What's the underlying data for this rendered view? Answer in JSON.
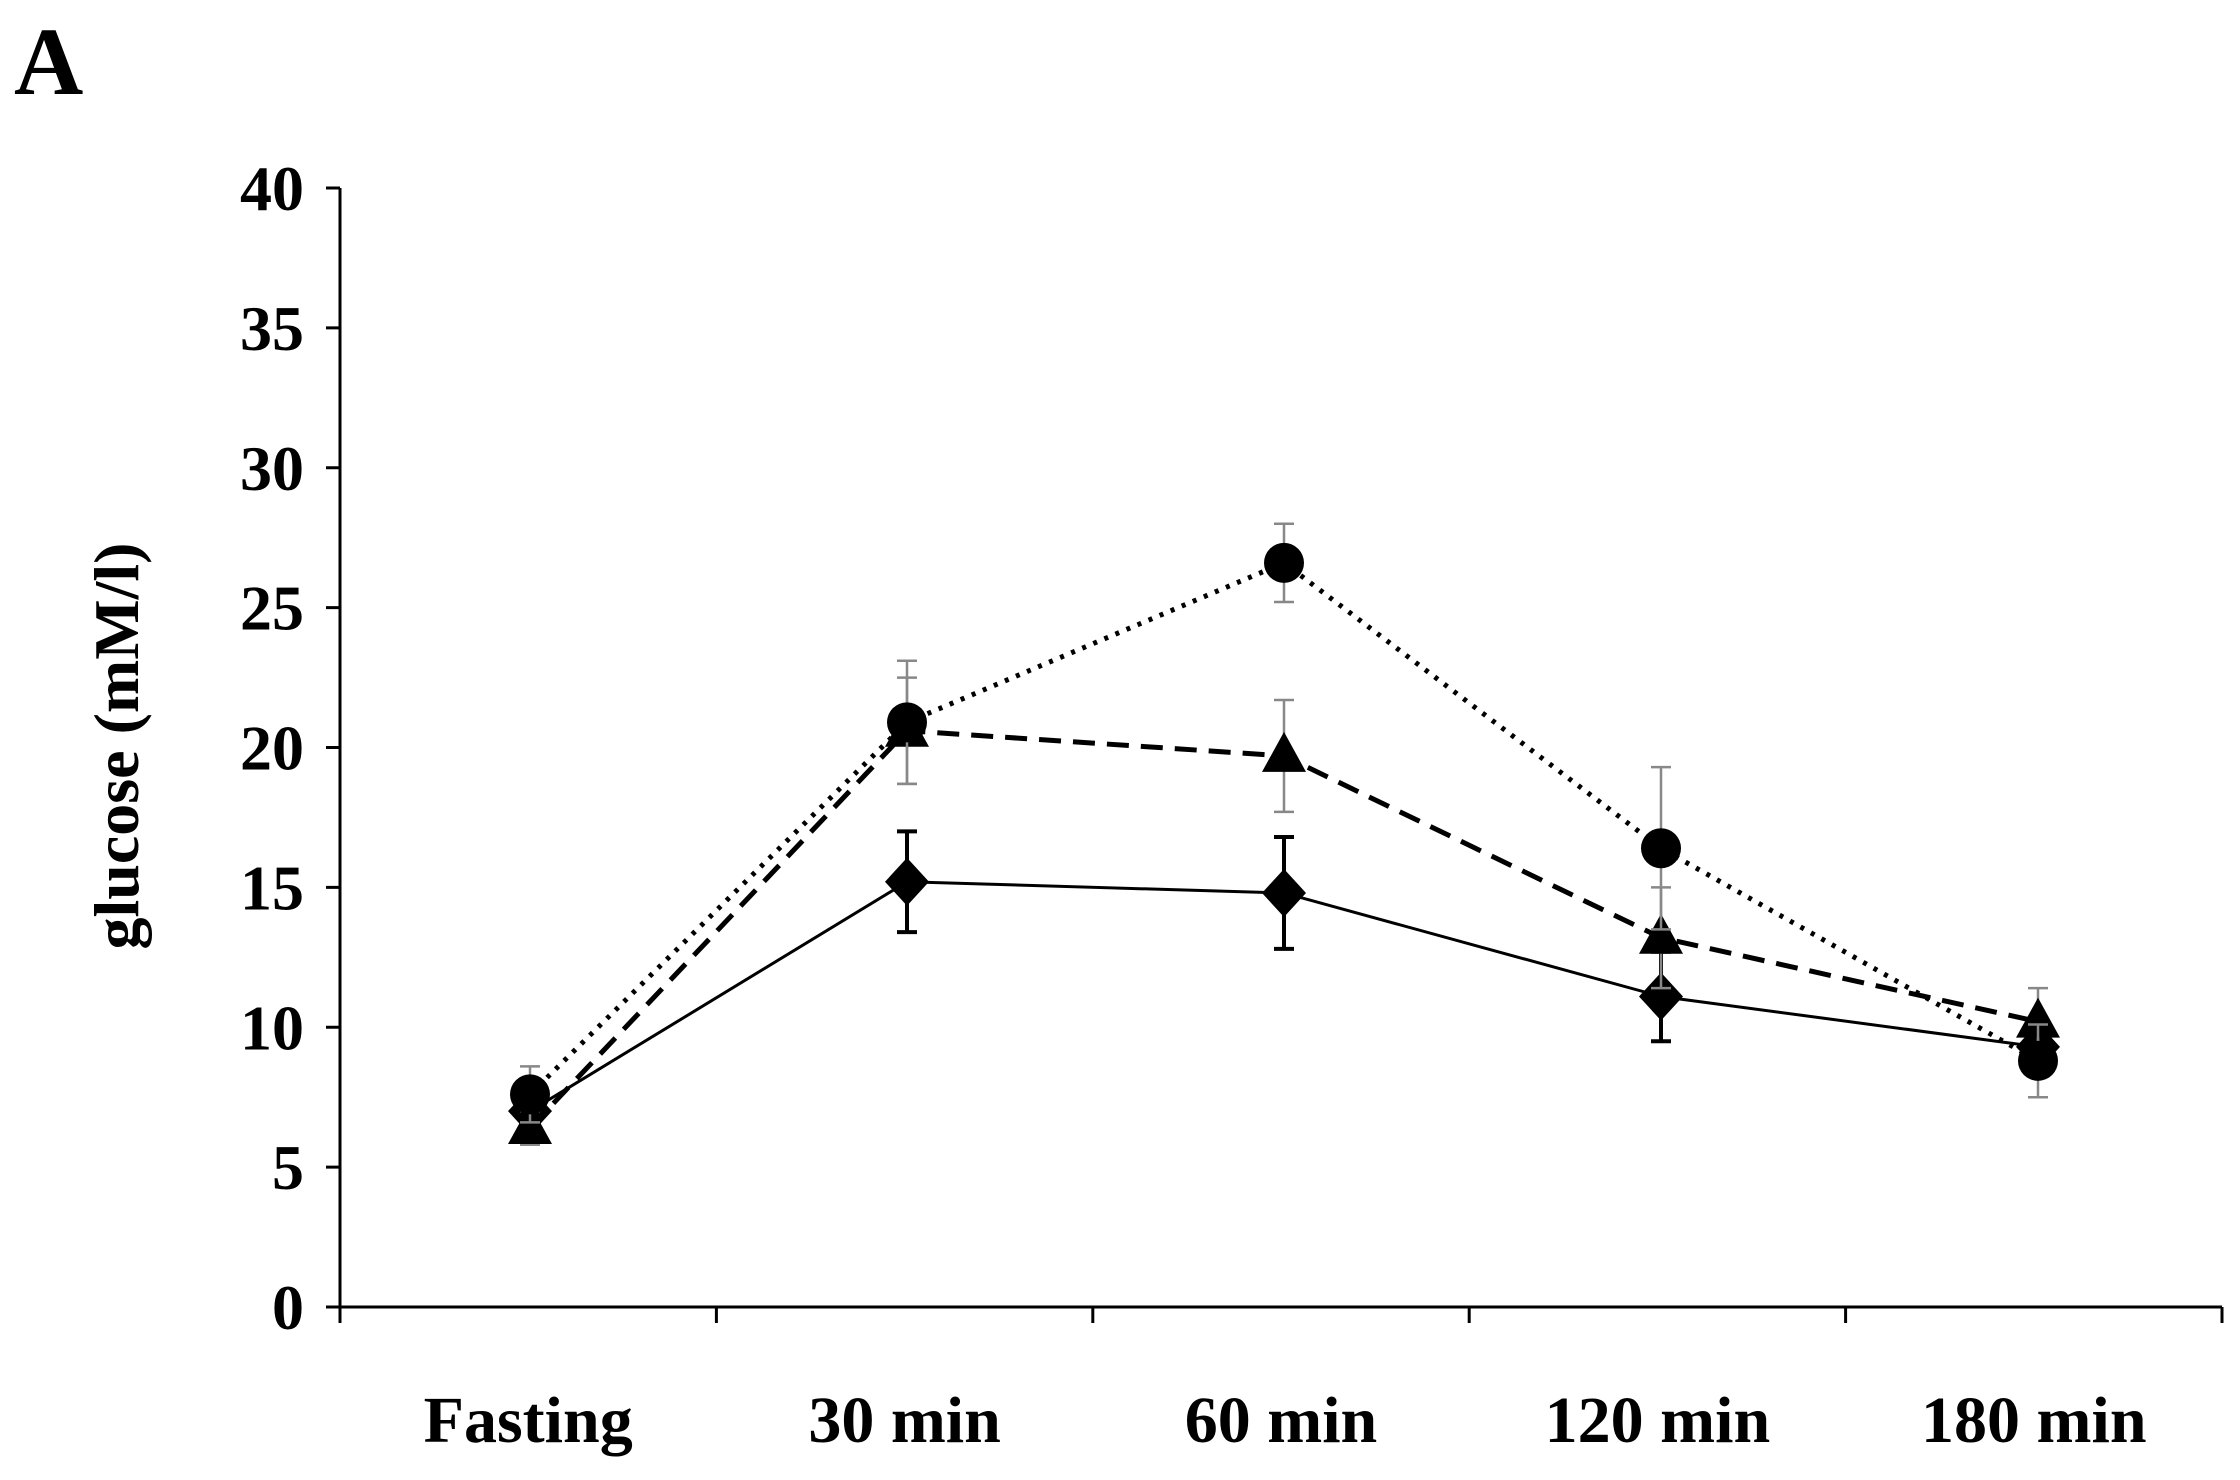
{
  "panel_label": "A",
  "chart_data": {
    "type": "line",
    "title": "",
    "xlabel": "",
    "ylabel": "glucose (mM/l)",
    "ylim": [
      0,
      40
    ],
    "yticks": [
      0,
      5,
      10,
      15,
      20,
      25,
      30,
      35,
      40
    ],
    "grid": false,
    "categories": [
      "Fasting",
      "30 min",
      "60 min",
      "120 min",
      "180 min"
    ],
    "series": [
      {
        "name": "diamond-solid",
        "marker": "diamond",
        "line_style": "solid",
        "values": [
          7.0,
          15.2,
          14.8,
          11.1,
          9.3
        ],
        "errors": [
          0.6,
          1.8,
          2.0,
          1.6,
          1.0
        ]
      },
      {
        "name": "triangle-dashed",
        "marker": "triangle",
        "line_style": "dashed",
        "values": [
          6.4,
          20.6,
          19.7,
          13.2,
          10.2
        ],
        "errors": [
          0.6,
          1.9,
          2.0,
          1.8,
          1.2
        ]
      },
      {
        "name": "circle-dotted",
        "marker": "circle",
        "line_style": "dotted",
        "values": [
          7.6,
          20.9,
          26.6,
          16.4,
          8.8
        ],
        "errors": [
          1.0,
          2.2,
          1.4,
          2.9,
          1.3
        ]
      }
    ],
    "colors": {
      "axis": "#000000",
      "series": "#000000",
      "error_bar": "#888888"
    }
  }
}
